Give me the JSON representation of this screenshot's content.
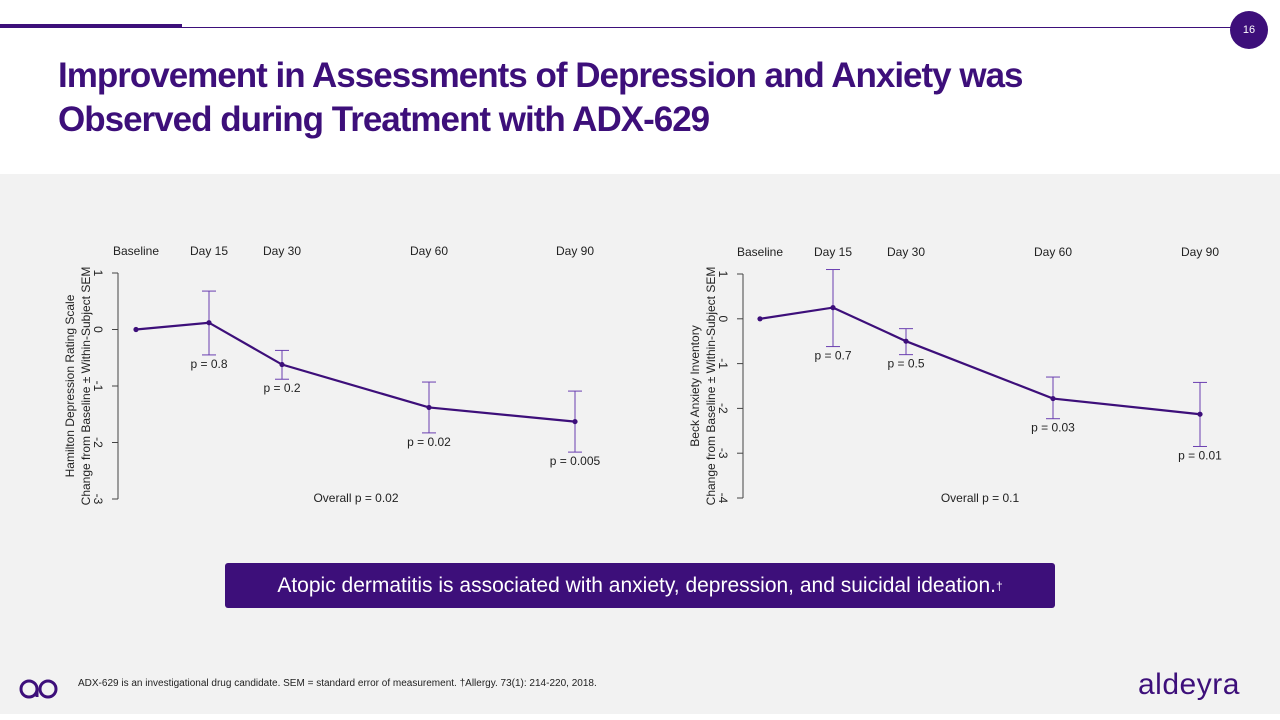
{
  "page_number": "16",
  "title_line1": "Improvement in Assessments of Depression and Anxiety was",
  "title_line2": "Observed during Treatment with ADX-629",
  "colors": {
    "brand": "#3d0f7a",
    "background_band": "#f2f2f2"
  },
  "callout": {
    "text": "Atopic dermatitis is associated with anxiety, depression, and suicidal ideation.",
    "sup": "†"
  },
  "footnote": "ADX-629 is an investigational drug candidate. SEM = standard error of measurement. †Allergy. 73(1): 214-220, 2018.",
  "brand_name": "aldeyra",
  "chart_data": [
    {
      "type": "line",
      "ylabel_line1": "Hamilton Depression Rating Scale",
      "ylabel_line2": "Change from Baseline ± Within-Subject SEM",
      "categories": [
        "Baseline",
        "Day 15",
        "Day 30",
        "Day 60",
        "Day 90"
      ],
      "x": [
        0,
        15,
        30,
        60,
        90
      ],
      "values": [
        0,
        0.12,
        -0.62,
        -1.38,
        -1.63
      ],
      "err_low": [
        null,
        -0.45,
        -0.88,
        -1.83,
        -2.17
      ],
      "err_high": [
        null,
        0.68,
        -0.37,
        -0.93,
        -1.09
      ],
      "p_labels": [
        "",
        "p = 0.8",
        "p = 0.2",
        "p = 0.02",
        "p = 0.005"
      ],
      "ylim": [
        -3,
        1
      ],
      "yticks": [
        1,
        0,
        -1,
        -2,
        -3
      ],
      "ytick_labels": [
        "1",
        "0",
        "-1",
        "-2",
        "-3"
      ],
      "overall": "Overall p = 0.02"
    },
    {
      "type": "line",
      "ylabel_line1": "Beck Anxiety Inventory",
      "ylabel_line2": "Change from Baseline ± Within-Subject SEM",
      "categories": [
        "Baseline",
        "Day 15",
        "Day 30",
        "Day 60",
        "Day 90"
      ],
      "x": [
        0,
        15,
        30,
        60,
        90
      ],
      "values": [
        0,
        0.25,
        -0.5,
        -1.78,
        -2.13
      ],
      "err_low": [
        null,
        -0.62,
        -0.8,
        -2.23,
        -2.85
      ],
      "err_high": [
        null,
        1.1,
        -0.22,
        -1.3,
        -1.42
      ],
      "p_labels": [
        "",
        "p = 0.7",
        "p = 0.5",
        "p = 0.03",
        "p = 0.01"
      ],
      "ylim": [
        -4,
        1
      ],
      "yticks": [
        1,
        0,
        -1,
        -2,
        -3,
        -4
      ],
      "ytick_labels": [
        "1",
        "0",
        "-1",
        "-2",
        "-3",
        "-4"
      ],
      "overall": "Overall p = 0.1"
    }
  ]
}
